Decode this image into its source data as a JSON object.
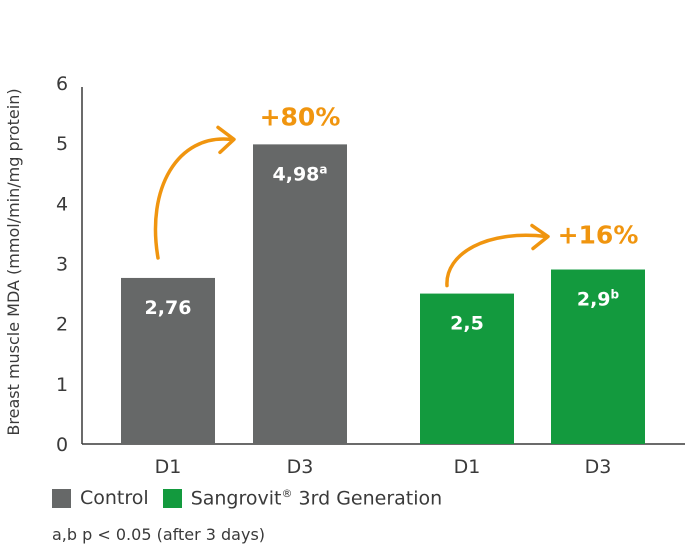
{
  "chart_data": {
    "type": "bar",
    "ylabel": "Breast muscle MDA (mmol/min/mg protein)",
    "ylim": [
      0,
      6
    ],
    "yticks": [
      0,
      1,
      2,
      3,
      4,
      5,
      6
    ],
    "grid": false,
    "groups": [
      {
        "name": "Control",
        "color": "#666868",
        "bars": [
          {
            "category": "D1",
            "value": 2.76,
            "label": "2,76",
            "sup": ""
          },
          {
            "category": "D3",
            "value": 4.98,
            "label": "4,98",
            "sup": "a"
          }
        ],
        "change": "+80%"
      },
      {
        "name": "Sangrovit® 3rd Generation",
        "color": "#139a3e",
        "bars": [
          {
            "category": "D1",
            "value": 2.5,
            "label": "2,5",
            "sup": ""
          },
          {
            "category": "D3",
            "value": 2.9,
            "label": "2,9",
            "sup": "b"
          }
        ],
        "change": "+16%"
      }
    ],
    "arrow_color": "#f0950f"
  },
  "legend": {
    "control_label": "Control",
    "sangrovit_label": "Sangrovit",
    "sangrovit_reg": "®",
    "sangrovit_suffix": " 3rd Generation"
  },
  "footnote": "a,b p < 0.05 (after 3 days)"
}
